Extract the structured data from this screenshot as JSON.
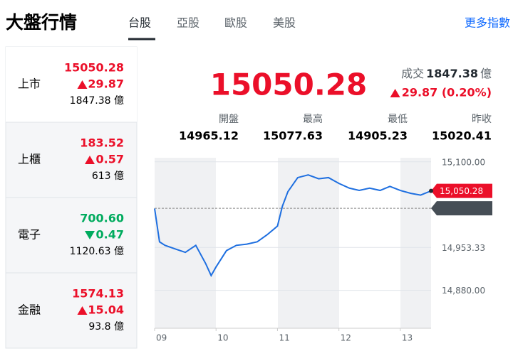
{
  "header": {
    "title": "大盤行情",
    "tabs": [
      "台股",
      "亞股",
      "歐股",
      "美股"
    ],
    "more": "更多指數"
  },
  "markets": [
    {
      "name": "上市",
      "price": "15050.28",
      "change": "29.87",
      "direction": "up",
      "volume": "1847.38 億"
    },
    {
      "name": "上櫃",
      "price": "183.52",
      "change": "0.57",
      "direction": "up",
      "volume": "613 億"
    },
    {
      "name": "電子",
      "price": "700.60",
      "change": "0.47",
      "direction": "down",
      "volume": "1120.63 億"
    },
    {
      "name": "金融",
      "price": "1574.13",
      "change": "15.04",
      "direction": "up",
      "volume": "93.8 億"
    }
  ],
  "summary": {
    "price": "15050.28",
    "volume_label": "成交",
    "volume": "1847.38",
    "volume_unit": "億",
    "change": "29.87 (0.20%)",
    "stats": [
      {
        "label": "開盤",
        "value": "14965.12"
      },
      {
        "label": "最高",
        "value": "15077.63"
      },
      {
        "label": "最低",
        "value": "14905.23"
      },
      {
        "label": "昨收",
        "value": "15020.41"
      }
    ]
  },
  "chart_data": {
    "type": "line",
    "color": "#1e6fe0",
    "x": [
      9.0,
      9.08,
      9.17,
      9.33,
      9.5,
      9.67,
      9.83,
      9.92,
      10.0,
      10.17,
      10.33,
      10.5,
      10.67,
      10.83,
      11.0,
      11.08,
      11.17,
      11.33,
      11.5,
      11.67,
      11.83,
      12.0,
      12.17,
      12.33,
      12.5,
      12.67,
      12.83,
      13.0,
      13.17,
      13.33,
      13.5
    ],
    "values": [
      15020,
      14963,
      14957,
      14951,
      14945,
      14957,
      14926,
      14905.23,
      14920,
      14948,
      14957,
      14959,
      14963,
      14975,
      14990,
      15024,
      15049,
      15073,
      15077.63,
      15071,
      15073,
      15063,
      15055,
      15051,
      15055,
      15051,
      15058,
      15051,
      15046,
      15043,
      15050.28
    ],
    "xlim": [
      9,
      13.5
    ],
    "xticks": [
      {
        "value": 9,
        "label": "09"
      },
      {
        "value": 10,
        "label": "10"
      },
      {
        "value": 11,
        "label": "11"
      },
      {
        "value": 12,
        "label": "12"
      },
      {
        "value": 13,
        "label": "13"
      }
    ],
    "ylim": [
      14815,
      15107
    ],
    "yticks": [
      {
        "value": 15100,
        "label": "15,100.00"
      },
      {
        "value": 14953.33,
        "label": "14,953.33"
      },
      {
        "value": 14880,
        "label": "14,880.00"
      }
    ],
    "current": {
      "value": 15050.28,
      "label": "15,050.28"
    },
    "prev_close": {
      "value": 15020.41,
      "label": "15,020.41"
    }
  }
}
